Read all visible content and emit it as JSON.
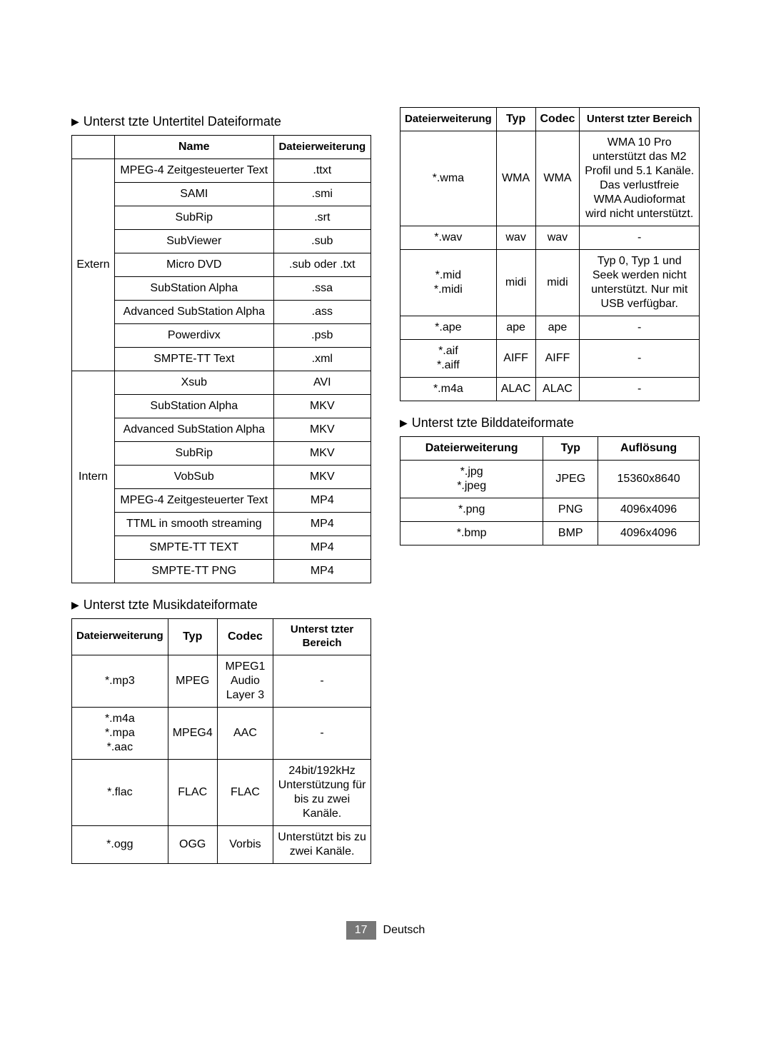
{
  "subtitle": {
    "heading": "Unterst tzte Untertitel Dateiformate",
    "cols": [
      "",
      "Name",
      "Dateierweiterung"
    ],
    "groups": [
      {
        "label": "Extern",
        "rows": [
          {
            "name": "MPEG-4 Zeitgesteuerter Text",
            "ext": ".ttxt"
          },
          {
            "name": "SAMI",
            "ext": ".smi"
          },
          {
            "name": "SubRip",
            "ext": ".srt"
          },
          {
            "name": "SubViewer",
            "ext": ".sub"
          },
          {
            "name": "Micro DVD",
            "ext": ".sub oder .txt"
          },
          {
            "name": "SubStation Alpha",
            "ext": ".ssa"
          },
          {
            "name": "Advanced SubStation Alpha",
            "ext": ".ass"
          },
          {
            "name": "Powerdivx",
            "ext": ".psb"
          },
          {
            "name": "SMPTE-TT Text",
            "ext": ".xml"
          }
        ]
      },
      {
        "label": "Intern",
        "rows": [
          {
            "name": "Xsub",
            "ext": "AVI"
          },
          {
            "name": "SubStation Alpha",
            "ext": "MKV"
          },
          {
            "name": "Advanced SubStation Alpha",
            "ext": "MKV"
          },
          {
            "name": "SubRip",
            "ext": "MKV"
          },
          {
            "name": "VobSub",
            "ext": "MKV"
          },
          {
            "name": "MPEG-4 Zeitgesteuerter Text",
            "ext": "MP4"
          },
          {
            "name": "TTML in smooth streaming",
            "ext": "MP4"
          },
          {
            "name": "SMPTE-TT TEXT",
            "ext": "MP4"
          },
          {
            "name": "SMPTE-TT PNG",
            "ext": "MP4"
          }
        ]
      }
    ]
  },
  "music": {
    "heading": "Unterst tzte Musikdateiformate",
    "cols": [
      "Dateierweiterung",
      "Typ",
      "Codec",
      "Unterst tzter Bereich"
    ],
    "rows": [
      {
        "ext": "*.mp3",
        "typ": "MPEG",
        "codec": "MPEG1 Audio Layer 3",
        "range": "-"
      },
      {
        "ext": "*.m4a\n*.mpa\n*.aac",
        "typ": "MPEG4",
        "codec": "AAC",
        "range": "-"
      },
      {
        "ext": "*.flac",
        "typ": "FLAC",
        "codec": "FLAC",
        "range": "24bit/192kHz Unterstützung für bis zu zwei Kanäle."
      },
      {
        "ext": "*.ogg",
        "typ": "OGG",
        "codec": "Vorbis",
        "range": "Unterstützt bis zu zwei Kanäle."
      },
      {
        "ext": "*.wma",
        "typ": "WMA",
        "codec": "WMA",
        "range": "WMA 10 Pro unterstützt das M2 Profil und 5.1 Kanäle. Das verlustfreie WMA Audioformat wird nicht unterstützt."
      },
      {
        "ext": "*.wav",
        "typ": "wav",
        "codec": "wav",
        "range": "-"
      },
      {
        "ext": "*.mid\n*.midi",
        "typ": "midi",
        "codec": "midi",
        "range": "Typ 0, Typ 1 und Seek werden nicht unterstützt. Nur mit USB verfügbar."
      },
      {
        "ext": "*.ape",
        "typ": "ape",
        "codec": "ape",
        "range": "-"
      },
      {
        "ext": "*.aif\n*.aiff",
        "typ": "AIFF",
        "codec": "AIFF",
        "range": "-"
      },
      {
        "ext": "*.m4a",
        "typ": "ALAC",
        "codec": "ALAC",
        "range": "-"
      }
    ],
    "split_at": 4
  },
  "image": {
    "heading": "Unterst tzte Bilddateiformate",
    "cols": [
      "Dateierweiterung",
      "Typ",
      "Auflösung"
    ],
    "rows": [
      {
        "ext": "*.jpg\n*.jpeg",
        "typ": "JPEG",
        "res": "15360x8640"
      },
      {
        "ext": "*.png",
        "typ": "PNG",
        "res": "4096x4096"
      },
      {
        "ext": "*.bmp",
        "typ": "BMP",
        "res": "4096x4096"
      }
    ]
  },
  "footer": {
    "page": "17",
    "lang": "Deutsch"
  },
  "colors": {
    "accent": "#777777"
  }
}
